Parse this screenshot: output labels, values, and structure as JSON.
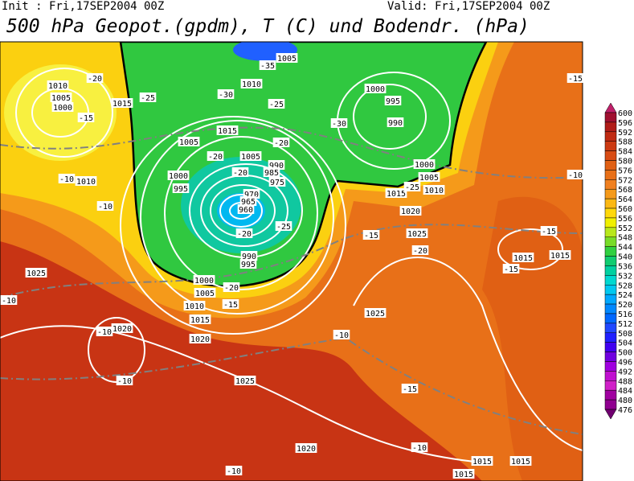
{
  "header": {
    "init": "Init : Fri,17SEP2004 00Z",
    "valid": "Valid: Fri,17SEP2004 00Z",
    "title": "500 hPa Geopot.(gpdm), T (C) und Bodendr. (hPa)"
  },
  "map": {
    "contour_labels": [
      "1005",
      "-35",
      "1010",
      "1005",
      "1000",
      "1015",
      "-20",
      "-25",
      "-15",
      "-30",
      "1010",
      "-25",
      "1015",
      "1005",
      "-20",
      "-20",
      "1005",
      "990",
      "985",
      "975",
      "-20",
      "1000",
      "995",
      "970",
      "965",
      "960",
      "-20",
      "-25",
      "990",
      "995",
      "1000",
      "1005",
      "-20",
      "1010",
      "-15",
      "1015",
      "1020",
      "1000",
      "995",
      "990",
      "-30",
      "1000",
      "1005",
      "1010",
      "1015",
      "1020",
      "-25",
      "-15",
      "-10",
      "1010",
      "-10",
      "1025",
      "-10",
      "-10",
      "1020",
      "-10",
      "1025",
      "-15",
      "1025",
      "-20",
      "-15",
      "1015",
      "1015",
      "-15",
      "1025",
      "-10",
      "-15",
      "-10",
      "1020",
      "-10",
      "1015",
      "1015",
      "1015",
      "-10"
    ]
  },
  "colorbar": {
    "labels": [
      600,
      596,
      592,
      588,
      584,
      580,
      576,
      572,
      568,
      564,
      560,
      556,
      552,
      548,
      544,
      540,
      536,
      532,
      528,
      524,
      520,
      516,
      512,
      508,
      504,
      500,
      496,
      492,
      488,
      484,
      480,
      476
    ],
    "colors": [
      "#c0206a",
      "#a01030",
      "#b01c18",
      "#c02a12",
      "#cc3a12",
      "#d84c14",
      "#e06014",
      "#e87018",
      "#f08020",
      "#f59a1a",
      "#fbb814",
      "#ffd80a",
      "#f0f000",
      "#b8e81c",
      "#78dc28",
      "#30d040",
      "#10cc70",
      "#00d0a0",
      "#00d8d0",
      "#00c8f0",
      "#00a8ff",
      "#0088ff",
      "#0068ff",
      "#2048ff",
      "#2020ff",
      "#4000f0",
      "#7000e0",
      "#a000e0",
      "#c010d0",
      "#d020c8",
      "#a000a0",
      "#900090",
      "#700070"
    ]
  }
}
